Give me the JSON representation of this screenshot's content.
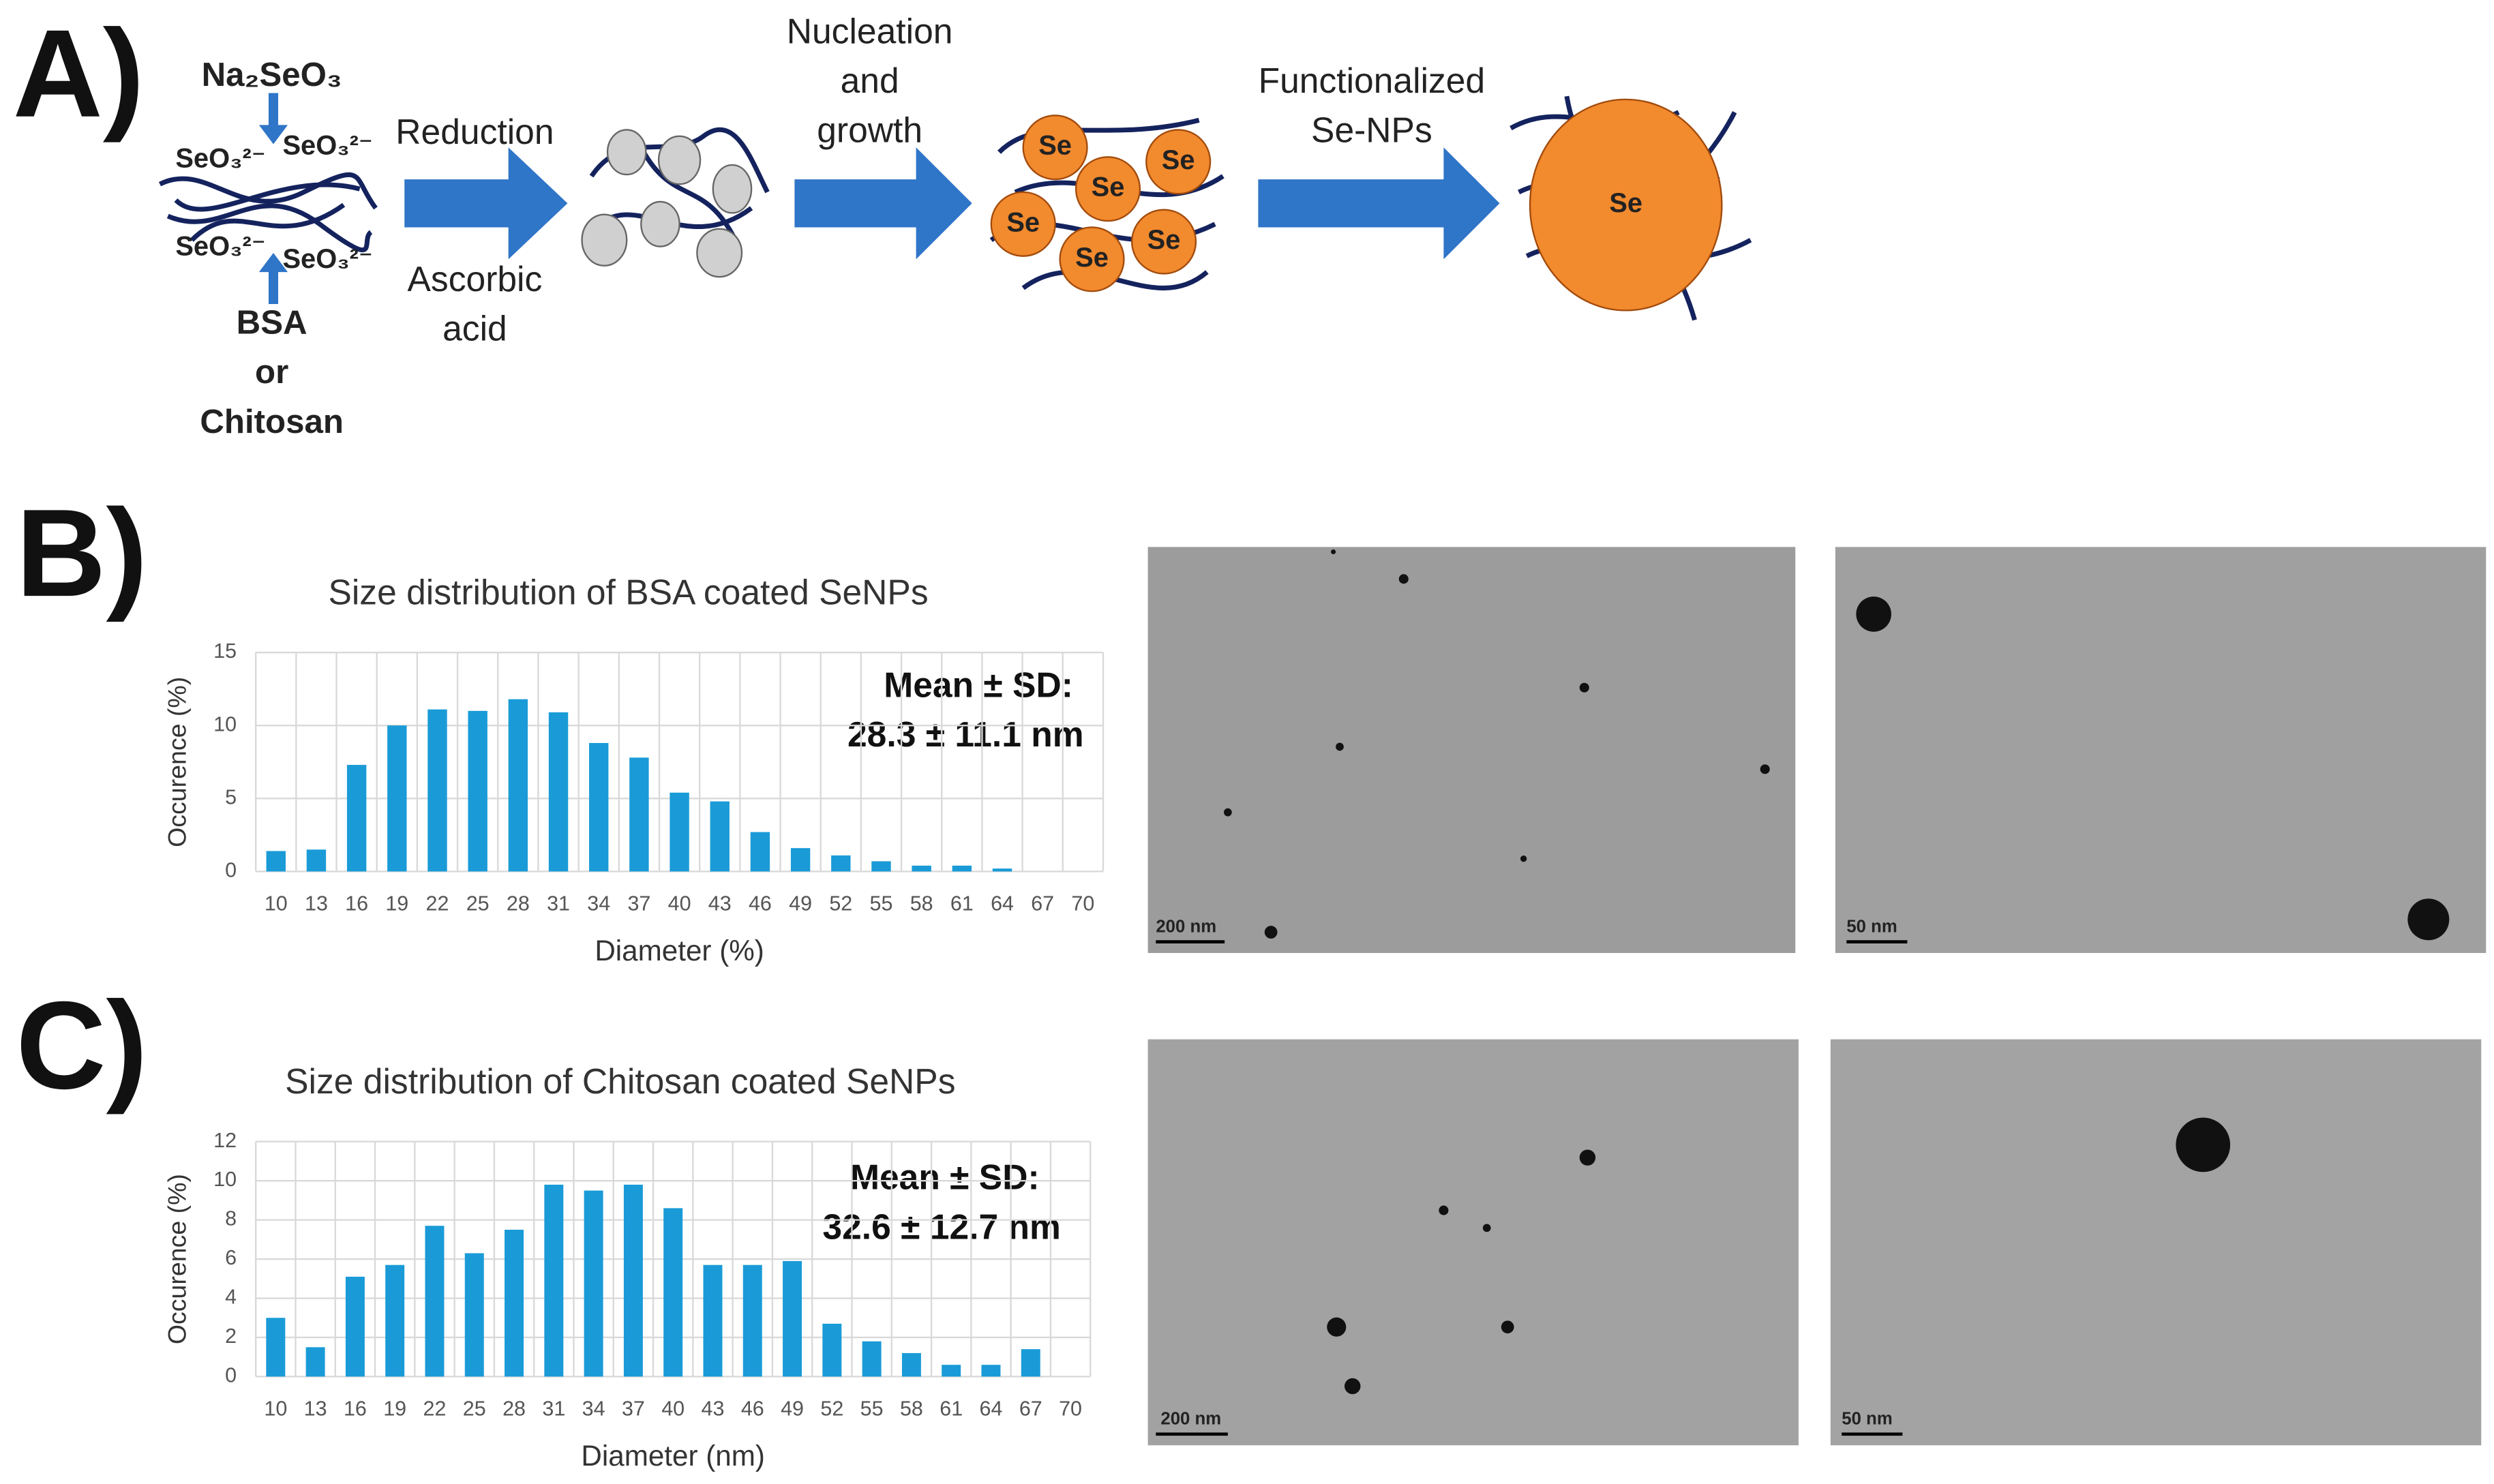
{
  "panel_labels": [
    "A)",
    "B)",
    "C)"
  ],
  "diagram": {
    "reagent_top": "Na₂SeO₃",
    "ions": [
      "SeO₃²⁻",
      "SeO₃²⁻",
      "SeO₃²⁻",
      "SeO₃²⁻"
    ],
    "reagent_bottom": [
      "BSA",
      "or",
      "Chitosan"
    ],
    "step1_top": "Reduction",
    "step1_bottom": [
      "Ascorbic",
      "acid"
    ],
    "step2": [
      "Nucleation",
      "and",
      "growth"
    ],
    "step3": [
      "Functionalized",
      "Se-NPs"
    ],
    "particle_labels": [
      "Se",
      "Se",
      "Se",
      "Se",
      "Se",
      "Se"
    ],
    "final_label": "Se"
  },
  "chart_data": [
    {
      "type": "bar",
      "title": "Size distribution of BSA  coated SeNPs",
      "x_label": "Diameter (%)",
      "y_label": "Occurence (%)",
      "categories": [
        10,
        13,
        16,
        19,
        22,
        25,
        28,
        31,
        34,
        37,
        40,
        43,
        46,
        49,
        52,
        55,
        58,
        61,
        64,
        67,
        70
      ],
      "values": [
        1.4,
        1.5,
        7.3,
        10,
        11.1,
        11,
        11.8,
        10.9,
        8.8,
        7.8,
        5.4,
        4.8,
        2.7,
        1.6,
        1.1,
        0.7,
        0.4,
        0.4,
        0.2,
        0,
        0
      ],
      "color": "#1a9bd7",
      "ylim": [
        0,
        15
      ],
      "yticks": [
        0,
        5,
        10,
        15
      ],
      "grid": true,
      "annotation": [
        "Mean ± SD:",
        "28.3 ± 11.1 nm"
      ]
    },
    {
      "type": "bar",
      "title": "Size distribution of Chitosan coated SeNPs",
      "x_label": "Diameter (nm)",
      "y_label": "Occurence (%)",
      "categories": [
        10,
        13,
        16,
        19,
        22,
        25,
        28,
        31,
        34,
        37,
        40,
        43,
        46,
        49,
        52,
        55,
        58,
        61,
        64,
        67,
        70
      ],
      "values": [
        3,
        1.5,
        5.1,
        5.7,
        7.7,
        6.3,
        7.5,
        9.8,
        9.5,
        9.8,
        8.6,
        5.7,
        5.7,
        5.9,
        2.7,
        1.8,
        1.2,
        0.6,
        0.6,
        1.4,
        0
      ],
      "color": "#1a9bd7",
      "ylim": [
        0,
        12
      ],
      "yticks": [
        0,
        2,
        4,
        6,
        8,
        10,
        12
      ],
      "grid": true,
      "annotation": [
        "Mean ± SD:",
        "32.6 ± 12.7 nm"
      ]
    }
  ],
  "images": [
    {
      "scale_bar": "200 nm"
    },
    {
      "scale_bar": "50 nm"
    },
    {
      "scale_bar": "200 nm"
    },
    {
      "scale_bar": "50 nm"
    }
  ]
}
